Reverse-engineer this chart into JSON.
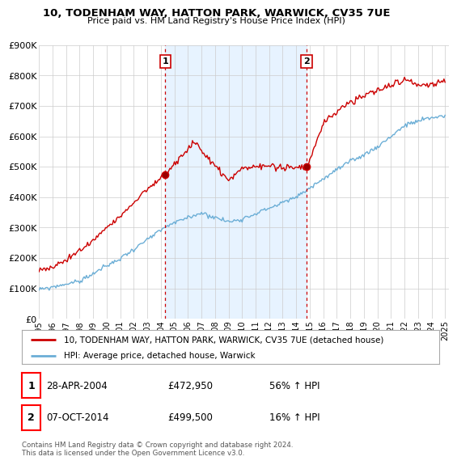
{
  "title": "10, TODENHAM WAY, HATTON PARK, WARWICK, CV35 7UE",
  "subtitle": "Price paid vs. HM Land Registry's House Price Index (HPI)",
  "ylim": [
    0,
    900000
  ],
  "yticks": [
    0,
    100000,
    200000,
    300000,
    400000,
    500000,
    600000,
    700000,
    800000,
    900000
  ],
  "ytick_labels": [
    "£0",
    "£100K",
    "£200K",
    "£300K",
    "£400K",
    "£500K",
    "£600K",
    "£700K",
    "£800K",
    "£900K"
  ],
  "x_start_year": 1995,
  "x_end_year": 2025,
  "sale1_date": 2004.32,
  "sale1_price": 472950,
  "sale1_label": "1",
  "sale1_date_str": "28-APR-2004",
  "sale1_price_str": "£472,950",
  "sale1_pct": "56% ↑ HPI",
  "sale2_date": 2014.77,
  "sale2_price": 499500,
  "sale2_label": "2",
  "sale2_date_str": "07-OCT-2014",
  "sale2_price_str": "£499,500",
  "sale2_pct": "16% ↑ HPI",
  "hpi_color": "#6baed6",
  "sale_color": "#cc0000",
  "vline_color": "#cc0000",
  "shade_color": "#ddeeff",
  "background_color": "#ffffff",
  "grid_color": "#cccccc",
  "legend_label_sale": "10, TODENHAM WAY, HATTON PARK, WARWICK, CV35 7UE (detached house)",
  "legend_label_hpi": "HPI: Average price, detached house, Warwick",
  "footer": "Contains HM Land Registry data © Crown copyright and database right 2024.\nThis data is licensed under the Open Government Licence v3.0."
}
